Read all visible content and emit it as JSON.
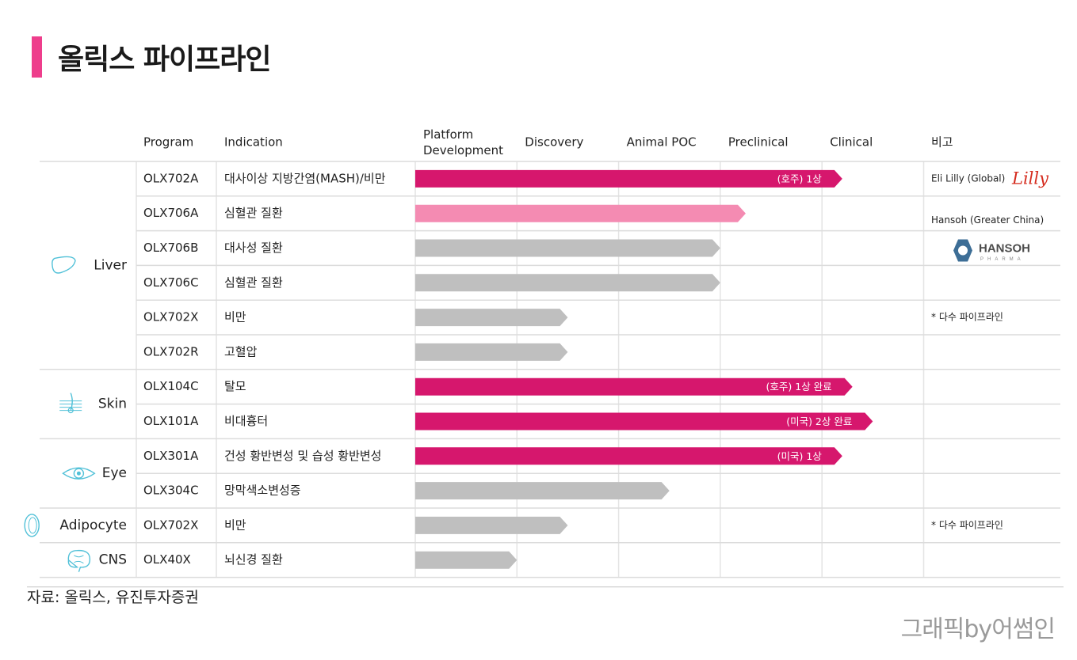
{
  "title": "올릭스 파이프라인",
  "source": "자료: 올릭스, 유진투자증권",
  "credit": "그래픽by어썸인",
  "colors": {
    "accent": "#ee3e8c",
    "magenta": "#d6176d",
    "pink": "#f48bb2",
    "gray": "#bfbfbf",
    "lilly_red": "#d52b1e",
    "hansoh_blue": "#3d6e96"
  },
  "chart_data": {
    "type": "table",
    "columns": {
      "program": "Program",
      "indication": "Indication",
      "stages": [
        "Platform\nDevelopment",
        "Discovery",
        "Animal POC",
        "Preclinical",
        "Clinical"
      ],
      "remarks": "비고"
    },
    "categories": [
      {
        "label": "Liver",
        "icon": "liver-icon",
        "rows": 6
      },
      {
        "label": "Skin",
        "icon": "skin-icon",
        "rows": 2
      },
      {
        "label": "Eye",
        "icon": "eye-icon",
        "rows": 2
      },
      {
        "label": "Adipocyte",
        "icon": "adipocyte-icon",
        "rows": 1
      },
      {
        "label": "CNS",
        "icon": "brain-icon",
        "rows": 1
      }
    ],
    "rows": [
      {
        "program": "OLX702A",
        "indication": "대사이상 지방간염(MASH)/비만",
        "progress": 4.2,
        "color": "magenta",
        "label": "(호주) 1상"
      },
      {
        "program": "OLX706A",
        "indication": "심혈관 질환",
        "progress": 3.25,
        "color": "pink",
        "label": ""
      },
      {
        "program": "OLX706B",
        "indication": "대사성 질환",
        "progress": 3.0,
        "color": "gray",
        "label": ""
      },
      {
        "program": "OLX706C",
        "indication": "심혈관 질환",
        "progress": 3.0,
        "color": "gray",
        "label": ""
      },
      {
        "program": "OLX702X",
        "indication": "비만",
        "progress": 1.5,
        "color": "gray",
        "label": ""
      },
      {
        "program": "OLX702R",
        "indication": "고혈압",
        "progress": 1.5,
        "color": "gray",
        "label": ""
      },
      {
        "program": "OLX104C",
        "indication": "탈모",
        "progress": 4.3,
        "color": "magenta",
        "label": "(호주) 1상 완료"
      },
      {
        "program": "OLX101A",
        "indication": "비대흉터",
        "progress": 4.5,
        "color": "magenta",
        "label": "(미국) 2상 완료"
      },
      {
        "program": "OLX301A",
        "indication": "건성 황반변성 및 습성 황반변성",
        "progress": 4.2,
        "color": "magenta",
        "label": "(미국) 1상"
      },
      {
        "program": "OLX304C",
        "indication": "망막색소변성증",
        "progress": 2.5,
        "color": "gray",
        "label": ""
      },
      {
        "program": "OLX702X",
        "indication": "비만",
        "progress": 1.5,
        "color": "gray",
        "label": ""
      },
      {
        "program": "OLX40X",
        "indication": "뇌신경 질환",
        "progress": 1.0,
        "color": "gray",
        "label": ""
      }
    ],
    "remarks": [
      {
        "text": "Eli Lilly (Global)",
        "logo_text": "Lilly"
      },
      {
        "text": "Hansoh (Greater China)",
        "logo_text": "HANSOH",
        "logo_subtext": "PHARMA"
      },
      {
        "text": "* 다수 파이프라인"
      },
      {
        "text": "* 다수 파이프라인"
      }
    ]
  }
}
